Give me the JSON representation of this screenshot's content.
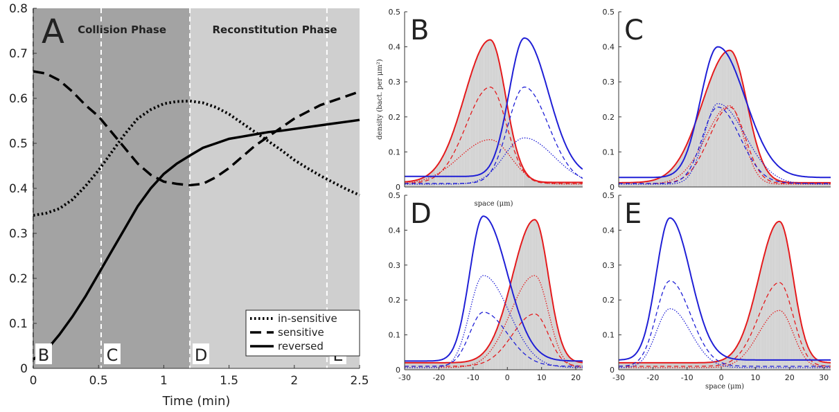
{
  "chart_data": [
    {
      "panel": "A",
      "type": "line",
      "xlabel": "Time (min)",
      "ylabel": "",
      "xlim": [
        0,
        2.5
      ],
      "ylim": [
        0,
        0.8
      ],
      "xticks": [
        "0",
        "0.5",
        "1",
        "1.5",
        "2",
        "2.5"
      ],
      "yticks": [
        "0",
        "0.1",
        "0.2",
        "0.3",
        "0.4",
        "0.5",
        "0.6",
        "0.7",
        "0.8"
      ],
      "grid": false,
      "legend": "bottom-right",
      "phases": [
        {
          "label": "Collision Phase",
          "x_range": [
            0,
            1.2
          ],
          "color": "#a3a3a3"
        },
        {
          "label": "Reconstitution Phase",
          "x_range": [
            1.2,
            2.5
          ],
          "color": "#cfcfcf"
        }
      ],
      "markers": [
        {
          "label": "B",
          "x": 0.0
        },
        {
          "label": "C",
          "x": 0.52
        },
        {
          "label": "D",
          "x": 1.2
        },
        {
          "label": "E",
          "x": 2.25
        }
      ],
      "series": [
        {
          "name": "in-sensitive",
          "style": "dotted",
          "x": [
            0,
            0.1,
            0.2,
            0.3,
            0.4,
            0.5,
            0.6,
            0.7,
            0.8,
            0.9,
            1.0,
            1.1,
            1.2,
            1.3,
            1.4,
            1.5,
            1.6,
            1.7,
            1.8,
            1.9,
            2.0,
            2.1,
            2.2,
            2.3,
            2.4,
            2.5
          ],
          "y": [
            0.34,
            0.345,
            0.355,
            0.375,
            0.405,
            0.44,
            0.48,
            0.52,
            0.555,
            0.575,
            0.588,
            0.593,
            0.594,
            0.59,
            0.58,
            0.565,
            0.545,
            0.525,
            0.505,
            0.485,
            0.463,
            0.445,
            0.428,
            0.413,
            0.398,
            0.385
          ]
        },
        {
          "name": "sensitive",
          "style": "dashed",
          "x": [
            0,
            0.1,
            0.2,
            0.3,
            0.4,
            0.5,
            0.6,
            0.7,
            0.8,
            0.9,
            1.0,
            1.1,
            1.2,
            1.3,
            1.4,
            1.5,
            1.6,
            1.7,
            1.8,
            1.9,
            2.0,
            2.1,
            2.2,
            2.3,
            2.4,
            2.5
          ],
          "y": [
            0.66,
            0.655,
            0.64,
            0.615,
            0.585,
            0.56,
            0.525,
            0.49,
            0.455,
            0.43,
            0.415,
            0.41,
            0.407,
            0.41,
            0.425,
            0.445,
            0.47,
            0.495,
            0.515,
            0.535,
            0.555,
            0.57,
            0.585,
            0.595,
            0.605,
            0.615
          ]
        },
        {
          "name": "reversed",
          "style": "solid",
          "x": [
            0,
            0.1,
            0.2,
            0.3,
            0.4,
            0.5,
            0.6,
            0.7,
            0.8,
            0.9,
            1.0,
            1.1,
            1.2,
            1.3,
            1.4,
            1.5,
            1.6,
            1.7,
            1.8,
            1.9,
            2.0,
            2.1,
            2.2,
            2.3,
            2.4,
            2.5
          ],
          "y": [
            0.02,
            0.04,
            0.075,
            0.115,
            0.16,
            0.21,
            0.26,
            0.31,
            0.36,
            0.4,
            0.432,
            0.455,
            0.473,
            0.49,
            0.5,
            0.51,
            0.515,
            0.52,
            0.525,
            0.528,
            0.532,
            0.536,
            0.54,
            0.544,
            0.548,
            0.552
          ]
        }
      ]
    },
    {
      "panel": "B",
      "type": "line",
      "xlabel": "space (μm)",
      "ylabel": "density (bact. per μm²)",
      "xlim": [
        -30,
        22
      ],
      "ylim": [
        0,
        0.5
      ],
      "xticks": [],
      "yticks": [
        "0",
        "0.1",
        "0.2",
        "0.3",
        "0.4",
        "0.5"
      ],
      "groups": [
        {
          "color": "red",
          "shaded": true,
          "peak_x": -5,
          "total": {
            "peak": 0.42,
            "base": 0.013,
            "sigma_left": 7.5,
            "sigma_right": 4.5
          },
          "dashed": {
            "peak": 0.285,
            "base": 0.01,
            "sigma_left": 7.0,
            "sigma_right": 4.8
          },
          "dotted": {
            "peak": 0.135,
            "base": 0.008,
            "sigma_left": 9.0,
            "sigma_right": 6.0
          }
        },
        {
          "color": "blue",
          "shaded": false,
          "peak_x": 5,
          "total": {
            "peak": 0.425,
            "base": 0.03,
            "sigma_left": 4.5,
            "sigma_right": 7.0
          },
          "dashed": {
            "peak": 0.285,
            "base": 0.01,
            "sigma_left": 4.8,
            "sigma_right": 7.0
          },
          "dotted": {
            "peak": 0.14,
            "base": 0.008,
            "sigma_left": 6.0,
            "sigma_right": 8.5
          }
        }
      ]
    },
    {
      "panel": "C",
      "type": "line",
      "xlabel": "",
      "ylabel": "",
      "xlim": [
        -30,
        32
      ],
      "ylim": [
        0,
        0.5
      ],
      "xticks": [],
      "yticks": [
        "0",
        "0.1",
        "0.2",
        "0.3",
        "0.4",
        "0.5"
      ],
      "groups": [
        {
          "color": "red",
          "shaded": true,
          "peak_x": 2.5,
          "total": {
            "peak": 0.39,
            "base": 0.012,
            "sigma_left": 8.0,
            "sigma_right": 5.0
          },
          "dashed": {
            "peak": 0.228,
            "base": 0.01,
            "sigma_left": 6.0,
            "sigma_right": 4.5
          },
          "dotted": {
            "peak": 0.232,
            "base": 0.008,
            "sigma_left": 7.0,
            "sigma_right": 4.0
          }
        },
        {
          "color": "blue",
          "shaded": false,
          "peak_x": -1,
          "total": {
            "peak": 0.4,
            "base": 0.027,
            "sigma_left": 5.0,
            "sigma_right": 8.0
          },
          "dashed": {
            "peak": 0.228,
            "base": 0.01,
            "sigma_left": 4.5,
            "sigma_right": 6.5
          },
          "dotted": {
            "peak": 0.238,
            "base": 0.008,
            "sigma_left": 4.0,
            "sigma_right": 8.0
          }
        }
      ]
    },
    {
      "panel": "D",
      "type": "line",
      "xlabel": "",
      "ylabel": "",
      "xlim": [
        -30,
        22
      ],
      "ylim": [
        0,
        0.5
      ],
      "xticks": [
        "-30",
        "-20",
        "-10",
        "0",
        "10",
        "20"
      ],
      "yticks": [
        "0",
        "0.1",
        "0.2",
        "0.3",
        "0.4",
        "0.5"
      ],
      "groups": [
        {
          "color": "red",
          "shaded": true,
          "peak_x": 8,
          "total": {
            "peak": 0.43,
            "base": 0.02,
            "sigma_left": 6.5,
            "sigma_right": 4.0
          },
          "dashed": {
            "peak": 0.16,
            "base": 0.01,
            "sigma_left": 6.5,
            "sigma_right": 4.0
          },
          "dotted": {
            "peak": 0.27,
            "base": 0.006,
            "sigma_left": 7.0,
            "sigma_right": 4.0
          }
        },
        {
          "color": "blue",
          "shaded": false,
          "peak_x": -7,
          "total": {
            "peak": 0.44,
            "base": 0.025,
            "sigma_left": 4.0,
            "sigma_right": 7.0
          },
          "dashed": {
            "peak": 0.165,
            "base": 0.01,
            "sigma_left": 4.0,
            "sigma_right": 7.0
          },
          "dotted": {
            "peak": 0.27,
            "base": 0.006,
            "sigma_left": 4.0,
            "sigma_right": 7.5
          }
        }
      ]
    },
    {
      "panel": "E",
      "type": "line",
      "xlabel": "space (μm)",
      "ylabel": "",
      "xlim": [
        -30,
        32
      ],
      "ylim": [
        0,
        0.5
      ],
      "xticks": [
        "-30",
        "-20",
        "-10",
        "0",
        "10",
        "20",
        "30"
      ],
      "yticks": [
        "0",
        "0.1",
        "0.2",
        "0.3",
        "0.4",
        "0.5"
      ],
      "groups": [
        {
          "color": "red",
          "shaded": true,
          "peak_x": 17,
          "total": {
            "peak": 0.425,
            "base": 0.02,
            "sigma_left": 6.0,
            "sigma_right": 4.0
          },
          "dashed": {
            "peak": 0.25,
            "base": 0.01,
            "sigma_left": 6.0,
            "sigma_right": 4.0
          },
          "dotted": {
            "peak": 0.17,
            "base": 0.006,
            "sigma_left": 6.0,
            "sigma_right": 4.0
          }
        },
        {
          "color": "blue",
          "shaded": false,
          "peak_x": -15,
          "total": {
            "peak": 0.435,
            "base": 0.028,
            "sigma_left": 4.0,
            "sigma_right": 6.0
          },
          "dashed": {
            "peak": 0.255,
            "base": 0.01,
            "sigma_left": 4.0,
            "sigma_right": 6.0
          },
          "dotted": {
            "peak": 0.175,
            "base": 0.006,
            "sigma_left": 4.0,
            "sigma_right": 6.0
          }
        }
      ]
    }
  ],
  "colors": {
    "red": "#e41a1c",
    "blue": "#1f1fd6",
    "shade": "#cfcfcf"
  }
}
